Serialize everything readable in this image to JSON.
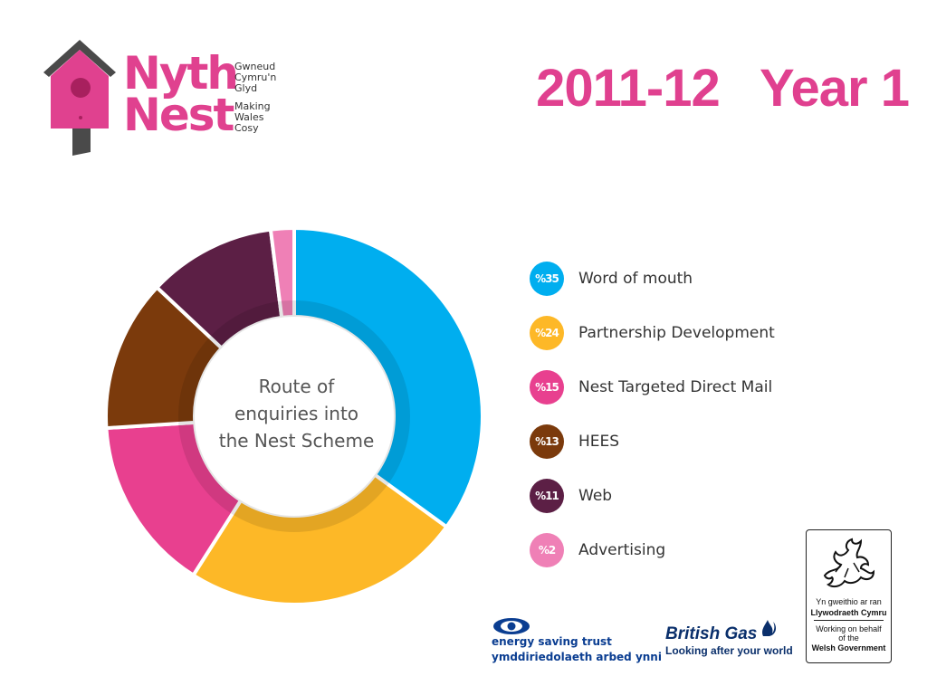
{
  "header": {
    "title": "2011-12   Year 1"
  },
  "logo": {
    "name_cy": "Nyth",
    "name_en": "Nest",
    "tagline_cy": [
      "Gwneud",
      "Cymru'n",
      "Glyd"
    ],
    "tagline_en": [
      "Making",
      "Wales",
      "Cosy"
    ],
    "color": "#e0418f"
  },
  "chart_data": {
    "type": "pie",
    "donut": true,
    "center_label": [
      "Route of",
      "enquiries into",
      "the Nest Scheme"
    ],
    "categories": [
      "Word of mouth",
      "Partnership Development",
      "Nest Targeted Direct Mail",
      "HEES",
      "Web",
      "Advertising"
    ],
    "values": [
      35,
      24,
      15,
      13,
      11,
      2
    ],
    "value_labels": [
      "%35",
      "%24",
      "%15",
      "%13",
      "%11",
      "%2"
    ],
    "colors": [
      "#00aeef",
      "#fdb827",
      "#e8408f",
      "#7b3a0c",
      "#5c1f45",
      "#ef80b6"
    ],
    "legend_position": "right"
  },
  "partners": {
    "energy_saving_trust": {
      "name": "energy saving trust",
      "name_cy": "ymddiriedolaeth arbed ynni",
      "icon": "eye-swirl-icon"
    },
    "british_gas": {
      "name": "British Gas",
      "tagline": "Looking after your world",
      "icon": "flame-icon"
    },
    "welsh_government": {
      "icon": "welsh-dragon-icon",
      "lines": [
        "Yn gweithio ar ran",
        "Llywodraeth Cymru",
        "Working on behalf",
        "of the",
        "Welsh Government"
      ]
    }
  }
}
